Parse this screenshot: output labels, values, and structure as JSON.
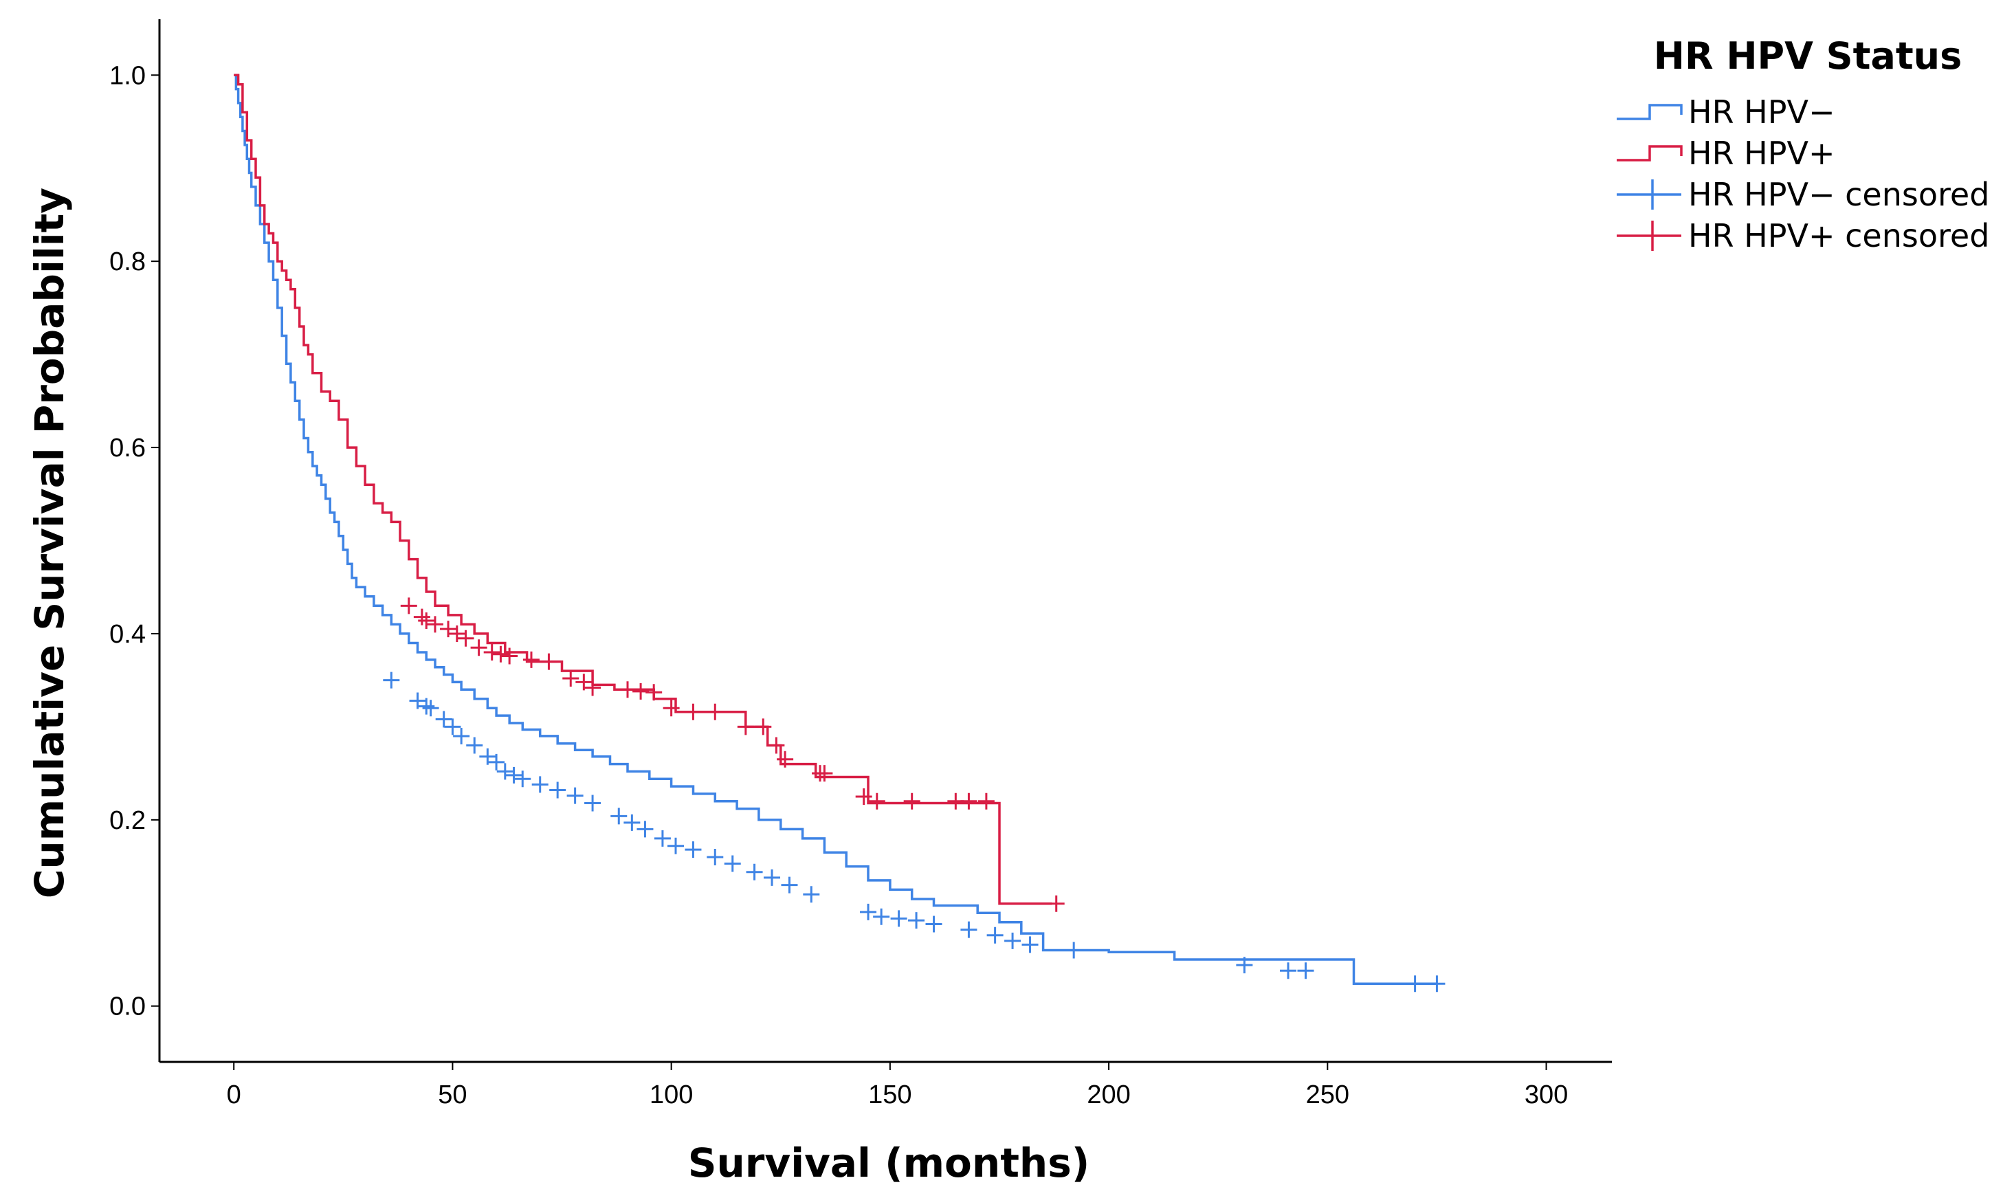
{
  "chart_data": {
    "type": "line",
    "subtype": "kaplan-meier-step",
    "title": "",
    "xlabel": "Survival (months)",
    "ylabel": "Cumulative Survival Probability",
    "xlim": [
      -17,
      315
    ],
    "ylim": [
      -0.06,
      1.06
    ],
    "xticks": [
      0,
      50,
      100,
      150,
      200,
      250,
      300
    ],
    "xtick_labels": [
      "0",
      "50",
      "100",
      "150",
      "200",
      "250",
      "300"
    ],
    "yticks": [
      0.0,
      0.2,
      0.4,
      0.6,
      0.8,
      1.0
    ],
    "ytick_labels": [
      "0.0",
      "0.2",
      "0.4",
      "0.6",
      "0.8",
      "1.0"
    ],
    "grid": false,
    "legend": {
      "title": "HR HPV Status",
      "position": "top-right",
      "entries": [
        {
          "label": "HR HPV−",
          "series": "hpv_neg",
          "marker": "step"
        },
        {
          "label": "HR HPV+",
          "series": "hpv_pos",
          "marker": "step"
        },
        {
          "label": "HR HPV− censored",
          "series": "hpv_neg",
          "marker": "cross"
        },
        {
          "label": "HR HPV+ censored",
          "series": "hpv_pos",
          "marker": "cross"
        }
      ]
    },
    "series": [
      {
        "id": "hpv_neg",
        "name": "HR HPV−",
        "color": "#3f84e5",
        "steps": [
          [
            0,
            1.0
          ],
          [
            0.5,
            0.985
          ],
          [
            1,
            0.97
          ],
          [
            1.5,
            0.955
          ],
          [
            2,
            0.94
          ],
          [
            2.5,
            0.925
          ],
          [
            3,
            0.91
          ],
          [
            3.5,
            0.895
          ],
          [
            4,
            0.88
          ],
          [
            5,
            0.86
          ],
          [
            6,
            0.84
          ],
          [
            7,
            0.82
          ],
          [
            8,
            0.8
          ],
          [
            9,
            0.78
          ],
          [
            10,
            0.75
          ],
          [
            11,
            0.72
          ],
          [
            12,
            0.69
          ],
          [
            13,
            0.67
          ],
          [
            14,
            0.65
          ],
          [
            15,
            0.63
          ],
          [
            16,
            0.61
          ],
          [
            17,
            0.595
          ],
          [
            18,
            0.58
          ],
          [
            19,
            0.57
          ],
          [
            20,
            0.56
          ],
          [
            21,
            0.545
          ],
          [
            22,
            0.53
          ],
          [
            23,
            0.52
          ],
          [
            24,
            0.505
          ],
          [
            25,
            0.49
          ],
          [
            26,
            0.475
          ],
          [
            27,
            0.46
          ],
          [
            28,
            0.45
          ],
          [
            30,
            0.44
          ],
          [
            32,
            0.43
          ],
          [
            34,
            0.42
          ],
          [
            36,
            0.41
          ],
          [
            38,
            0.4
          ],
          [
            40,
            0.39
          ],
          [
            42,
            0.38
          ],
          [
            44,
            0.372
          ],
          [
            46,
            0.364
          ],
          [
            48,
            0.356
          ],
          [
            50,
            0.348
          ],
          [
            52,
            0.34
          ],
          [
            55,
            0.33
          ],
          [
            58,
            0.32
          ],
          [
            60,
            0.312
          ],
          [
            63,
            0.304
          ],
          [
            66,
            0.297
          ],
          [
            70,
            0.29
          ],
          [
            74,
            0.282
          ],
          [
            78,
            0.275
          ],
          [
            82,
            0.268
          ],
          [
            86,
            0.26
          ],
          [
            90,
            0.252
          ],
          [
            95,
            0.244
          ],
          [
            100,
            0.236
          ],
          [
            105,
            0.228
          ],
          [
            110,
            0.22
          ],
          [
            115,
            0.212
          ],
          [
            120,
            0.2
          ],
          [
            125,
            0.19
          ],
          [
            130,
            0.18
          ],
          [
            135,
            0.165
          ],
          [
            140,
            0.15
          ],
          [
            145,
            0.135
          ],
          [
            150,
            0.125
          ],
          [
            155,
            0.115
          ],
          [
            160,
            0.108
          ],
          [
            170,
            0.1
          ],
          [
            175,
            0.09
          ],
          [
            180,
            0.078
          ],
          [
            185,
            0.06
          ],
          [
            200,
            0.058
          ],
          [
            215,
            0.05
          ],
          [
            256,
            0.024
          ],
          [
            275,
            0.024
          ]
        ],
        "censored": [
          [
            36,
            0.35
          ],
          [
            42,
            0.328
          ],
          [
            44,
            0.322
          ],
          [
            45,
            0.32
          ],
          [
            48,
            0.308
          ],
          [
            50,
            0.3
          ],
          [
            52,
            0.29
          ],
          [
            55,
            0.28
          ],
          [
            58,
            0.268
          ],
          [
            60,
            0.262
          ],
          [
            62,
            0.252
          ],
          [
            64,
            0.248
          ],
          [
            66,
            0.244
          ],
          [
            70,
            0.238
          ],
          [
            74,
            0.232
          ],
          [
            78,
            0.226
          ],
          [
            82,
            0.218
          ],
          [
            88,
            0.204
          ],
          [
            91,
            0.197
          ],
          [
            94,
            0.19
          ],
          [
            98,
            0.18
          ],
          [
            101,
            0.172
          ],
          [
            105,
            0.168
          ],
          [
            110,
            0.16
          ],
          [
            114,
            0.153
          ],
          [
            119,
            0.144
          ],
          [
            123,
            0.138
          ],
          [
            127,
            0.13
          ],
          [
            132,
            0.12
          ],
          [
            145,
            0.101
          ],
          [
            148,
            0.096
          ],
          [
            152,
            0.094
          ],
          [
            156,
            0.092
          ],
          [
            160,
            0.088
          ],
          [
            168,
            0.082
          ],
          [
            174,
            0.076
          ],
          [
            178,
            0.07
          ],
          [
            182,
            0.066
          ],
          [
            192,
            0.06
          ],
          [
            231,
            0.044
          ],
          [
            241,
            0.038
          ],
          [
            245,
            0.038
          ],
          [
            270,
            0.024
          ],
          [
            275,
            0.024
          ]
        ]
      },
      {
        "id": "hpv_pos",
        "name": "HR HPV+",
        "color": "#d81e45",
        "steps": [
          [
            0,
            1.0
          ],
          [
            1,
            0.99
          ],
          [
            2,
            0.96
          ],
          [
            3,
            0.93
          ],
          [
            4,
            0.91
          ],
          [
            5,
            0.89
          ],
          [
            6,
            0.86
          ],
          [
            7,
            0.84
          ],
          [
            8,
            0.83
          ],
          [
            9,
            0.82
          ],
          [
            10,
            0.8
          ],
          [
            11,
            0.79
          ],
          [
            12,
            0.78
          ],
          [
            13,
            0.77
          ],
          [
            14,
            0.75
          ],
          [
            15,
            0.73
          ],
          [
            16,
            0.71
          ],
          [
            17,
            0.7
          ],
          [
            18,
            0.68
          ],
          [
            20,
            0.66
          ],
          [
            22,
            0.65
          ],
          [
            24,
            0.63
          ],
          [
            26,
            0.6
          ],
          [
            28,
            0.58
          ],
          [
            30,
            0.56
          ],
          [
            32,
            0.54
          ],
          [
            34,
            0.53
          ],
          [
            36,
            0.52
          ],
          [
            38,
            0.5
          ],
          [
            40,
            0.48
          ],
          [
            42,
            0.46
          ],
          [
            44,
            0.445
          ],
          [
            46,
            0.43
          ],
          [
            49,
            0.42
          ],
          [
            52,
            0.41
          ],
          [
            55,
            0.4
          ],
          [
            58,
            0.39
          ],
          [
            62,
            0.38
          ],
          [
            67,
            0.37
          ],
          [
            75,
            0.36
          ],
          [
            82,
            0.345
          ],
          [
            87,
            0.34
          ],
          [
            96,
            0.33
          ],
          [
            101,
            0.316
          ],
          [
            117,
            0.3
          ],
          [
            122,
            0.28
          ],
          [
            125,
            0.26
          ],
          [
            133,
            0.246
          ],
          [
            145,
            0.218
          ],
          [
            175,
            0.11
          ],
          [
            187,
            0.11
          ]
        ],
        "censored": [
          [
            40,
            0.43
          ],
          [
            43,
            0.418
          ],
          [
            44,
            0.414
          ],
          [
            46,
            0.41
          ],
          [
            49,
            0.405
          ],
          [
            51,
            0.4
          ],
          [
            53,
            0.395
          ],
          [
            56,
            0.385
          ],
          [
            59,
            0.38
          ],
          [
            61,
            0.378
          ],
          [
            63,
            0.376
          ],
          [
            68,
            0.372
          ],
          [
            72,
            0.37
          ],
          [
            77,
            0.352
          ],
          [
            80,
            0.348
          ],
          [
            82,
            0.342
          ],
          [
            90,
            0.34
          ],
          [
            93,
            0.338
          ],
          [
            96,
            0.337
          ],
          [
            100,
            0.32
          ],
          [
            105,
            0.316
          ],
          [
            110,
            0.316
          ],
          [
            117,
            0.3
          ],
          [
            121,
            0.3
          ],
          [
            124,
            0.28
          ],
          [
            126,
            0.265
          ],
          [
            134,
            0.25
          ],
          [
            135,
            0.25
          ],
          [
            144,
            0.225
          ],
          [
            147,
            0.22
          ],
          [
            155,
            0.22
          ],
          [
            165,
            0.22
          ],
          [
            168,
            0.22
          ],
          [
            172,
            0.22
          ],
          [
            188,
            0.11
          ]
        ]
      }
    ]
  }
}
